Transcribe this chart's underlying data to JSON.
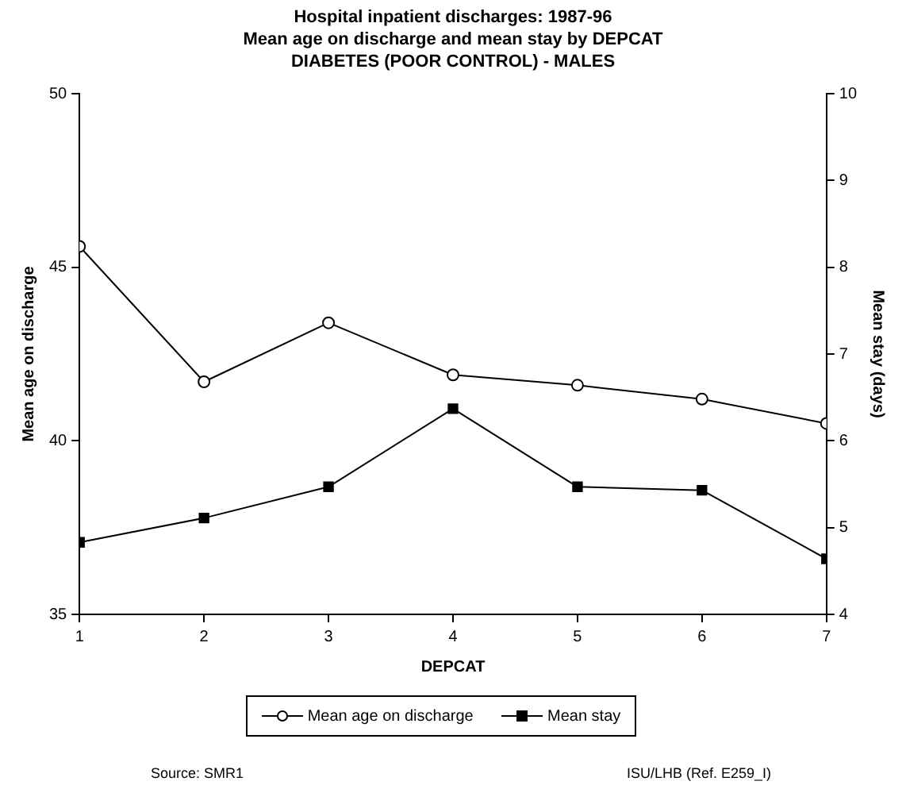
{
  "chart_data": {
    "type": "line",
    "title": "Hospital inpatient discharges: 1987-96",
    "subtitle": "Mean age on discharge and mean stay by DEPCAT\nDIABETES (POOR CONTROL) - MALES",
    "xlabel": "DEPCAT",
    "ylabel": "Mean age on discharge",
    "y2label": "Mean stay (days)",
    "x": [
      1,
      2,
      3,
      4,
      5,
      6,
      7
    ],
    "xlim": [
      1,
      7
    ],
    "xticks": [
      1,
      2,
      3,
      4,
      5,
      6,
      7
    ],
    "ylim": [
      35,
      50
    ],
    "yticks": [
      35,
      40,
      45,
      50
    ],
    "y2lim": [
      4,
      10
    ],
    "y2ticks": [
      4,
      5,
      6,
      7,
      8,
      9,
      10
    ],
    "series": [
      {
        "name": "Mean age on discharge",
        "color": "#000000",
        "marker": "circle",
        "values": [
          45.6,
          41.7,
          43.4,
          41.9,
          41.6,
          41.2,
          40.5
        ]
      },
      {
        "name": "Mean stay",
        "color": "#000000",
        "marker": "square",
        "axis": "y2",
        "values": [
          4.83,
          5.11,
          5.47,
          6.37,
          5.47,
          5.43,
          4.64
        ]
      }
    ],
    "legend": "bottom",
    "grid": false,
    "line_style": "solid",
    "annotations": [
      "Source: SMR1",
      "ISU/LHB (Ref. E259_I)"
    ]
  }
}
